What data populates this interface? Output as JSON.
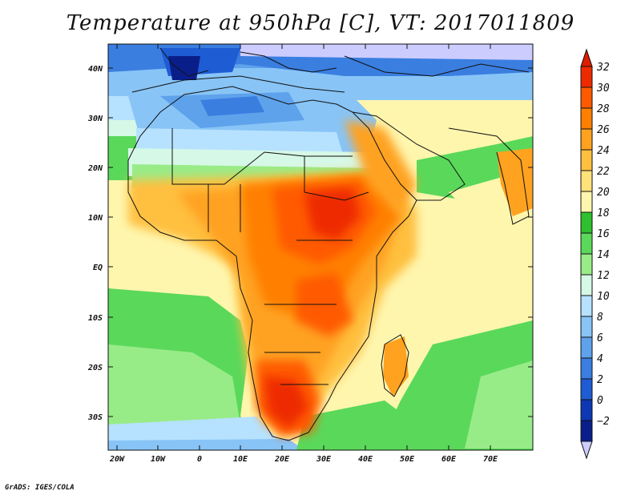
{
  "title": "Temperature at 950hPa [C], VT: 2017011809",
  "credit": "GrADS: IGES/COLA",
  "map": {
    "region": "Africa and surrounding oceans",
    "lat_labels": [
      "40N",
      "30N",
      "20N",
      "10N",
      "EQ",
      "10S",
      "20S",
      "30S"
    ],
    "lon_labels": [
      "20W",
      "10W",
      "0",
      "10E",
      "20E",
      "30E",
      "40E",
      "50E",
      "60E",
      "70E"
    ]
  },
  "colorbar": {
    "labels": [
      "32",
      "30",
      "28",
      "26",
      "24",
      "22",
      "20",
      "18",
      "16",
      "14",
      "12",
      "10",
      "8",
      "6",
      "4",
      "2",
      "0",
      "−2"
    ],
    "colors": [
      "#ee2a00",
      "#ff5a00",
      "#ff8000",
      "#ffa220",
      "#ffc040",
      "#ffe27a",
      "#fff6ae",
      "#2ec02e",
      "#5ad85a",
      "#98ec88",
      "#d6f8e6",
      "#b6e2ff",
      "#88c4f6",
      "#5ea2ec",
      "#3a7ee0",
      "#1e5cd4",
      "#0c38b4",
      "#0a1e8a"
    ],
    "top_color": "#dd1c00",
    "bottom_color": "#ccccff"
  }
}
